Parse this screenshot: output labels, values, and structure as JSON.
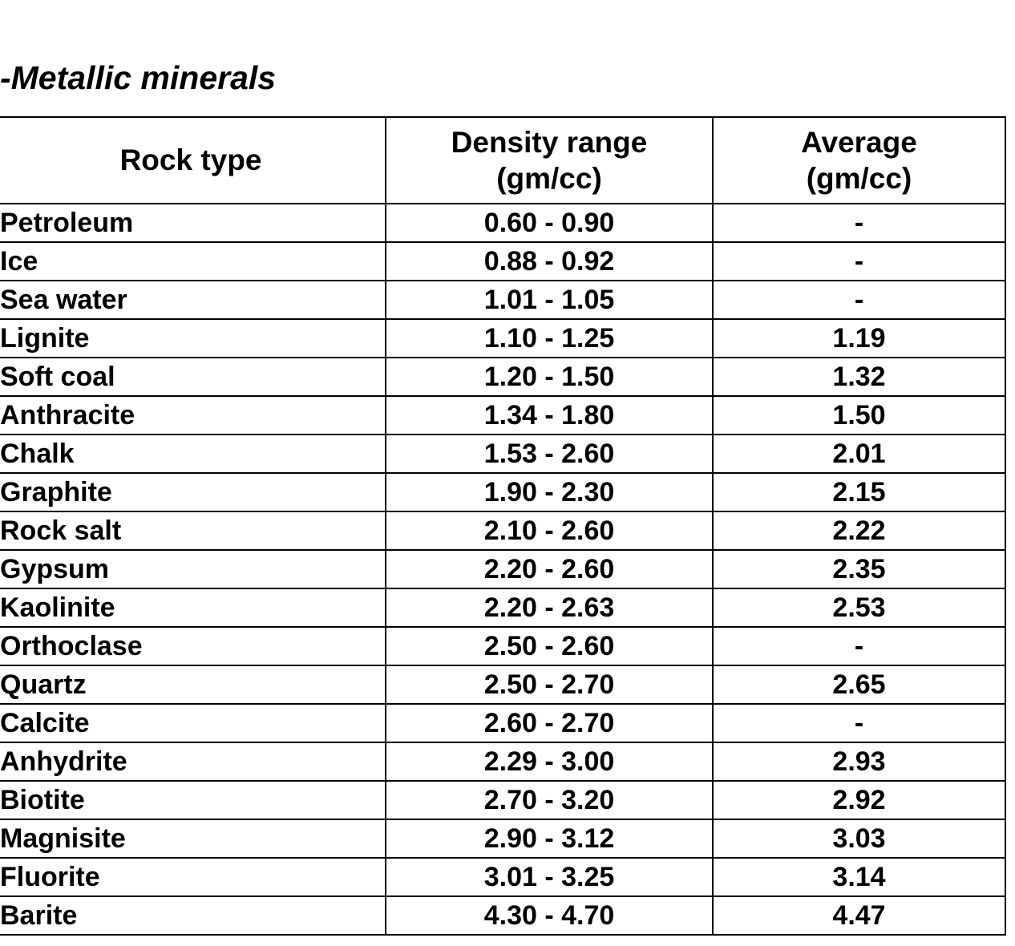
{
  "title": "-Metallic minerals",
  "table": {
    "columns": [
      {
        "label": "Rock type",
        "sub": ""
      },
      {
        "label": "Density range",
        "sub": "(gm/cc)"
      },
      {
        "label": "Average",
        "sub": "(gm/cc)"
      }
    ],
    "rows": [
      {
        "rock": "Petroleum",
        "range": "0.60 - 0.90",
        "avg": "-"
      },
      {
        "rock": "Ice",
        "range": "0.88 - 0.92",
        "avg": "-"
      },
      {
        "rock": "Sea water",
        "range": "1.01 - 1.05",
        "avg": "-"
      },
      {
        "rock": "Lignite",
        "range": "1.10 - 1.25",
        "avg": "1.19"
      },
      {
        "rock": "Soft coal",
        "range": "1.20 - 1.50",
        "avg": "1.32"
      },
      {
        "rock": "Anthracite",
        "range": "1.34 - 1.80",
        "avg": "1.50"
      },
      {
        "rock": "Chalk",
        "range": "1.53 - 2.60",
        "avg": "2.01"
      },
      {
        "rock": "Graphite",
        "range": "1.90 - 2.30",
        "avg": "2.15"
      },
      {
        "rock": "Rock salt",
        "range": "2.10 - 2.60",
        "avg": "2.22"
      },
      {
        "rock": "Gypsum",
        "range": "2.20 - 2.60",
        "avg": "2.35"
      },
      {
        "rock": "Kaolinite",
        "range": "2.20 - 2.63",
        "avg": "2.53"
      },
      {
        "rock": "Orthoclase",
        "range": "2.50 - 2.60",
        "avg": "-"
      },
      {
        "rock": "Quartz",
        "range": "2.50 - 2.70",
        "avg": "2.65"
      },
      {
        "rock": "Calcite",
        "range": "2.60 - 2.70",
        "avg": "-"
      },
      {
        "rock": "Anhydrite",
        "range": "2.29 - 3.00",
        "avg": "2.93"
      },
      {
        "rock": "Biotite",
        "range": "2.70 - 3.20",
        "avg": "2.92"
      },
      {
        "rock": "Magnisite",
        "range": "2.90 - 3.12",
        "avg": "3.03"
      },
      {
        "rock": "Fluorite",
        "range": "3.01 - 3.25",
        "avg": "3.14"
      },
      {
        "rock": "Barite",
        "range": "4.30 - 4.70",
        "avg": "4.47"
      }
    ]
  }
}
